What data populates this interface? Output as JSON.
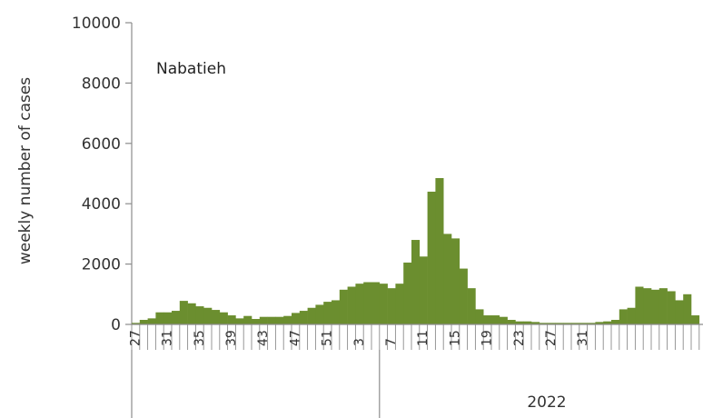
{
  "chart_data": {
    "type": "bar",
    "ylabel": "weekly number of cases",
    "ylim": [
      0,
      10000
    ],
    "y_ticks": [
      "0",
      "2000",
      "4000",
      "6000",
      "8000",
      "10000"
    ],
    "annotation": "Nabatieh",
    "bar_color": "#6b8e2f",
    "x_tick_labels": [
      "27",
      "31",
      "35",
      "39",
      "43",
      "47",
      "51",
      "3",
      "7",
      "11",
      "15",
      "19",
      "23",
      "27",
      "31"
    ],
    "year_labels": [
      "2022"
    ],
    "grid": false,
    "series": [
      {
        "values": [
          50,
          150,
          200,
          400,
          400,
          450,
          780,
          700,
          600,
          550,
          480,
          400,
          300,
          200,
          280,
          180,
          250,
          250,
          250,
          280,
          380,
          450,
          550,
          650,
          750,
          800,
          1150,
          1250,
          1350,
          1400,
          1400,
          1350,
          1200,
          1350,
          2050,
          2800,
          2250,
          4400,
          4850,
          3000,
          2850,
          1850,
          1200,
          500,
          300,
          300,
          250,
          150,
          100,
          100,
          80,
          50,
          50,
          50,
          50,
          50,
          50,
          50,
          80,
          100,
          150,
          500,
          550,
          1250,
          1200,
          1150,
          1200,
          1100,
          800,
          1000,
          300
        ]
      }
    ]
  }
}
